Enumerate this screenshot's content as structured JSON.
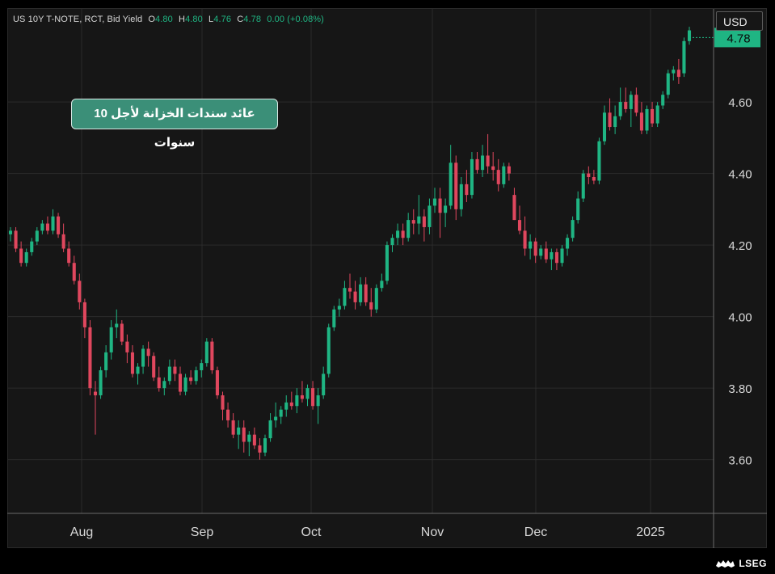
{
  "header": {
    "instrument": "US 10Y T-NOTE, RCT, Bid Yield",
    "open_label": "O",
    "open": "4.80",
    "high_label": "H",
    "high": "4.80",
    "low_label": "L",
    "low": "4.76",
    "close_label": "C",
    "close": "4.78",
    "change": "0.00 (+0.08%)"
  },
  "currency_button": "USD",
  "annotation": "عائد سندات الخزانة لأجل 10 سنوات",
  "last_price_label": "4.78",
  "footer": {
    "brand": "LSEG"
  },
  "colors": {
    "up": "#1fb583",
    "down": "#e0475e",
    "background": "#161616",
    "grid": "#2b2b2b",
    "text": "#d8d8d8"
  },
  "chart_data": {
    "type": "candlestick",
    "x_ticks": [
      "Aug",
      "Sep",
      "Oct",
      "Nov",
      "Dec",
      "2025"
    ],
    "y_ticks": [
      "3.60",
      "3.80",
      "4.00",
      "4.20",
      "4.40",
      "4.60"
    ],
    "ylim": [
      3.45,
      4.86
    ],
    "grid": true,
    "last_value": 4.78,
    "candles": [
      [
        4.23,
        4.25,
        4.21,
        4.24
      ],
      [
        4.24,
        4.25,
        4.18,
        4.19
      ],
      [
        4.19,
        4.21,
        4.14,
        4.15
      ],
      [
        4.15,
        4.19,
        4.14,
        4.18
      ],
      [
        4.18,
        4.22,
        4.17,
        4.21
      ],
      [
        4.21,
        4.25,
        4.2,
        4.24
      ],
      [
        4.24,
        4.27,
        4.23,
        4.26
      ],
      [
        4.26,
        4.28,
        4.23,
        4.24
      ],
      [
        4.24,
        4.3,
        4.23,
        4.28
      ],
      [
        4.28,
        4.29,
        4.22,
        4.23
      ],
      [
        4.23,
        4.26,
        4.18,
        4.19
      ],
      [
        4.19,
        4.21,
        4.14,
        4.15
      ],
      [
        4.15,
        4.17,
        4.09,
        4.1
      ],
      [
        4.1,
        4.12,
        4.02,
        4.04
      ],
      [
        4.04,
        4.05,
        3.94,
        3.97
      ],
      [
        3.97,
        3.99,
        3.78,
        3.8
      ],
      [
        3.79,
        3.82,
        3.67,
        3.78
      ],
      [
        3.78,
        3.86,
        3.77,
        3.85
      ],
      [
        3.85,
        3.92,
        3.83,
        3.9
      ],
      [
        3.9,
        3.99,
        3.88,
        3.97
      ],
      [
        3.97,
        4.02,
        3.94,
        3.98
      ],
      [
        3.98,
        3.99,
        3.92,
        3.93
      ],
      [
        3.93,
        3.95,
        3.87,
        3.9
      ],
      [
        3.9,
        3.92,
        3.83,
        3.84
      ],
      [
        3.84,
        3.87,
        3.81,
        3.86
      ],
      [
        3.86,
        3.92,
        3.84,
        3.91
      ],
      [
        3.91,
        3.93,
        3.86,
        3.89
      ],
      [
        3.89,
        3.9,
        3.82,
        3.83
      ],
      [
        3.83,
        3.86,
        3.79,
        3.8
      ],
      [
        3.8,
        3.83,
        3.78,
        3.82
      ],
      [
        3.82,
        3.88,
        3.81,
        3.86
      ],
      [
        3.86,
        3.88,
        3.82,
        3.84
      ],
      [
        3.84,
        3.86,
        3.78,
        3.79
      ],
      [
        3.79,
        3.84,
        3.78,
        3.83
      ],
      [
        3.83,
        3.85,
        3.81,
        3.82
      ],
      [
        3.82,
        3.86,
        3.81,
        3.85
      ],
      [
        3.85,
        3.88,
        3.83,
        3.87
      ],
      [
        3.87,
        3.94,
        3.86,
        3.93
      ],
      [
        3.93,
        3.94,
        3.84,
        3.85
      ],
      [
        3.85,
        3.86,
        3.77,
        3.78
      ],
      [
        3.78,
        3.79,
        3.71,
        3.74
      ],
      [
        3.74,
        3.76,
        3.69,
        3.71
      ],
      [
        3.71,
        3.73,
        3.66,
        3.67
      ],
      [
        3.67,
        3.71,
        3.63,
        3.69
      ],
      [
        3.69,
        3.71,
        3.62,
        3.65
      ],
      [
        3.65,
        3.68,
        3.61,
        3.67
      ],
      [
        3.67,
        3.69,
        3.63,
        3.64
      ],
      [
        3.64,
        3.66,
        3.6,
        3.62
      ],
      [
        3.62,
        3.67,
        3.61,
        3.66
      ],
      [
        3.66,
        3.73,
        3.65,
        3.71
      ],
      [
        3.71,
        3.76,
        3.69,
        3.72
      ],
      [
        3.72,
        3.75,
        3.7,
        3.74
      ],
      [
        3.74,
        3.78,
        3.72,
        3.76
      ],
      [
        3.76,
        3.79,
        3.74,
        3.75
      ],
      [
        3.75,
        3.8,
        3.73,
        3.78
      ],
      [
        3.78,
        3.82,
        3.76,
        3.77
      ],
      [
        3.77,
        3.81,
        3.75,
        3.8
      ],
      [
        3.8,
        3.82,
        3.74,
        3.75
      ],
      [
        3.75,
        3.8,
        3.7,
        3.78
      ],
      [
        3.78,
        3.86,
        3.77,
        3.84
      ],
      [
        3.84,
        3.98,
        3.83,
        3.97
      ],
      [
        3.97,
        4.03,
        3.96,
        4.02
      ],
      [
        4.02,
        4.05,
        4.0,
        4.03
      ],
      [
        4.03,
        4.1,
        4.02,
        4.08
      ],
      [
        4.08,
        4.12,
        4.05,
        4.07
      ],
      [
        4.07,
        4.1,
        4.02,
        4.04
      ],
      [
        4.04,
        4.11,
        4.03,
        4.09
      ],
      [
        4.09,
        4.11,
        4.03,
        4.04
      ],
      [
        4.04,
        4.08,
        4.0,
        4.02
      ],
      [
        4.02,
        4.09,
        4.01,
        4.08
      ],
      [
        4.08,
        4.12,
        4.07,
        4.1
      ],
      [
        4.1,
        4.21,
        4.09,
        4.2
      ],
      [
        4.2,
        4.23,
        4.18,
        4.22
      ],
      [
        4.22,
        4.26,
        4.2,
        4.24
      ],
      [
        4.24,
        4.26,
        4.2,
        4.22
      ],
      [
        4.22,
        4.29,
        4.21,
        4.27
      ],
      [
        4.27,
        4.3,
        4.23,
        4.26
      ],
      [
        4.26,
        4.34,
        4.23,
        4.28
      ],
      [
        4.28,
        4.3,
        4.21,
        4.25
      ],
      [
        4.25,
        4.33,
        4.23,
        4.31
      ],
      [
        4.31,
        4.36,
        4.29,
        4.33
      ],
      [
        4.33,
        4.36,
        4.22,
        4.29
      ],
      [
        4.29,
        4.33,
        4.25,
        4.31
      ],
      [
        4.31,
        4.48,
        4.3,
        4.43
      ],
      [
        4.43,
        4.45,
        4.27,
        4.3
      ],
      [
        4.3,
        4.39,
        4.28,
        4.37
      ],
      [
        4.37,
        4.41,
        4.32,
        4.34
      ],
      [
        4.34,
        4.46,
        4.33,
        4.44
      ],
      [
        4.44,
        4.46,
        4.4,
        4.41
      ],
      [
        4.41,
        4.48,
        4.39,
        4.45
      ],
      [
        4.45,
        4.51,
        4.4,
        4.42
      ],
      [
        4.42,
        4.46,
        4.38,
        4.41
      ],
      [
        4.41,
        4.44,
        4.35,
        4.37
      ],
      [
        4.37,
        4.43,
        4.36,
        4.42
      ],
      [
        4.42,
        4.43,
        4.38,
        4.4
      ],
      [
        4.34,
        4.36,
        4.27,
        4.27
      ],
      [
        4.27,
        4.31,
        4.23,
        4.24
      ],
      [
        4.24,
        4.28,
        4.17,
        4.19
      ],
      [
        4.19,
        4.23,
        4.16,
        4.21
      ],
      [
        4.21,
        4.22,
        4.15,
        4.17
      ],
      [
        4.17,
        4.2,
        4.16,
        4.19
      ],
      [
        4.19,
        4.21,
        4.15,
        4.16
      ],
      [
        4.16,
        4.19,
        4.13,
        4.18
      ],
      [
        4.18,
        4.19,
        4.13,
        4.15
      ],
      [
        4.15,
        4.2,
        4.14,
        4.19
      ],
      [
        4.19,
        4.23,
        4.17,
        4.22
      ],
      [
        4.22,
        4.28,
        4.21,
        4.27
      ],
      [
        4.27,
        4.35,
        4.26,
        4.33
      ],
      [
        4.33,
        4.41,
        4.32,
        4.4
      ],
      [
        4.4,
        4.42,
        4.37,
        4.39
      ],
      [
        4.39,
        4.41,
        4.37,
        4.38
      ],
      [
        4.38,
        4.5,
        4.37,
        4.49
      ],
      [
        4.49,
        4.59,
        4.48,
        4.57
      ],
      [
        4.57,
        4.61,
        4.52,
        4.53
      ],
      [
        4.53,
        4.59,
        4.51,
        4.56
      ],
      [
        4.56,
        4.64,
        4.55,
        4.6
      ],
      [
        4.6,
        4.64,
        4.57,
        4.58
      ],
      [
        4.58,
        4.63,
        4.53,
        4.62
      ],
      [
        4.62,
        4.64,
        4.56,
        4.57
      ],
      [
        4.57,
        4.6,
        4.51,
        4.52
      ],
      [
        4.52,
        4.59,
        4.51,
        4.58
      ],
      [
        4.58,
        4.6,
        4.53,
        4.54
      ],
      [
        4.54,
        4.6,
        4.53,
        4.59
      ],
      [
        4.59,
        4.63,
        4.58,
        4.62
      ],
      [
        4.62,
        4.69,
        4.61,
        4.68
      ],
      [
        4.68,
        4.7,
        4.66,
        4.69
      ],
      [
        4.69,
        4.72,
        4.65,
        4.67
      ],
      [
        4.68,
        4.78,
        4.67,
        4.77
      ],
      [
        4.77,
        4.81,
        4.76,
        4.8
      ]
    ]
  }
}
